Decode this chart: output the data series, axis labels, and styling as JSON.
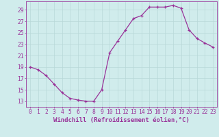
{
  "x": [
    0,
    1,
    2,
    3,
    4,
    5,
    6,
    7,
    8,
    9,
    10,
    11,
    12,
    13,
    14,
    15,
    16,
    17,
    18,
    19,
    20,
    21,
    22,
    23
  ],
  "y": [
    19,
    18.5,
    17.5,
    16.0,
    14.5,
    13.5,
    13.2,
    13.0,
    13.0,
    15.0,
    21.5,
    23.5,
    25.5,
    27.5,
    28.0,
    29.5,
    29.5,
    29.5,
    29.8,
    29.3,
    25.5,
    24.0,
    23.2,
    22.5
  ],
  "line_color": "#993399",
  "marker": "+",
  "bg_color": "#d0ecec",
  "grid_color": "#b8d8d8",
  "axis_color": "#993399",
  "tick_color": "#993399",
  "xlabel": "Windchill (Refroidissement éolien,°C)",
  "ylabel_ticks": [
    13,
    15,
    17,
    19,
    21,
    23,
    25,
    27,
    29
  ],
  "xlim": [
    -0.5,
    23.5
  ],
  "ylim": [
    12.0,
    30.5
  ],
  "xticks": [
    0,
    1,
    2,
    3,
    4,
    5,
    6,
    7,
    8,
    9,
    10,
    11,
    12,
    13,
    14,
    15,
    16,
    17,
    18,
    19,
    20,
    21,
    22,
    23
  ],
  "font_size_label": 6.5,
  "font_size_tick": 5.8,
  "line_width": 0.9,
  "marker_size": 3.0
}
